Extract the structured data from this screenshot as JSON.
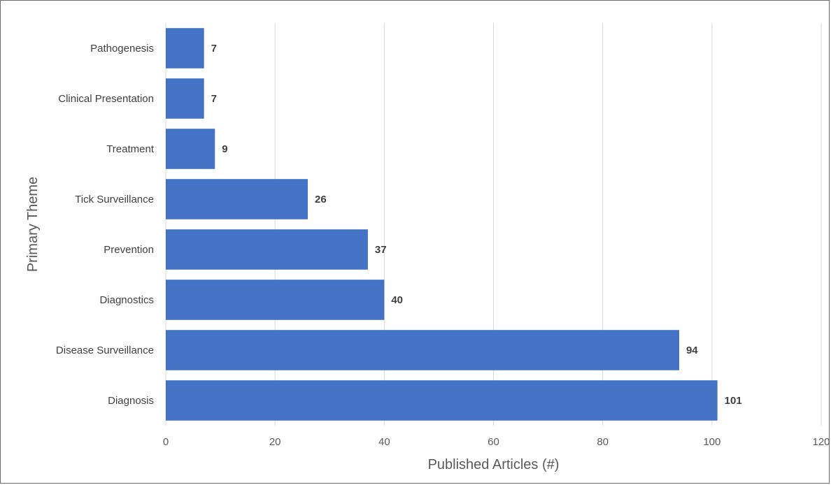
{
  "chart_data": {
    "type": "bar",
    "orientation": "horizontal",
    "title": "",
    "xlabel": "Published Articles (#)",
    "ylabel": "Primary Theme",
    "categories": [
      "Pathogenesis",
      "Clinical Presentation",
      "Treatment",
      "Tick Surveillance",
      "Prevention",
      "Diagnostics",
      "Disease Surveillance",
      "Diagnosis"
    ],
    "values": [
      7,
      7,
      9,
      26,
      37,
      40,
      94,
      101
    ],
    "xlim": [
      0,
      120
    ],
    "xticks": [
      0,
      20,
      40,
      60,
      80,
      100,
      120
    ],
    "grid": true,
    "legend": "none",
    "bar_color": "#4472C4"
  }
}
